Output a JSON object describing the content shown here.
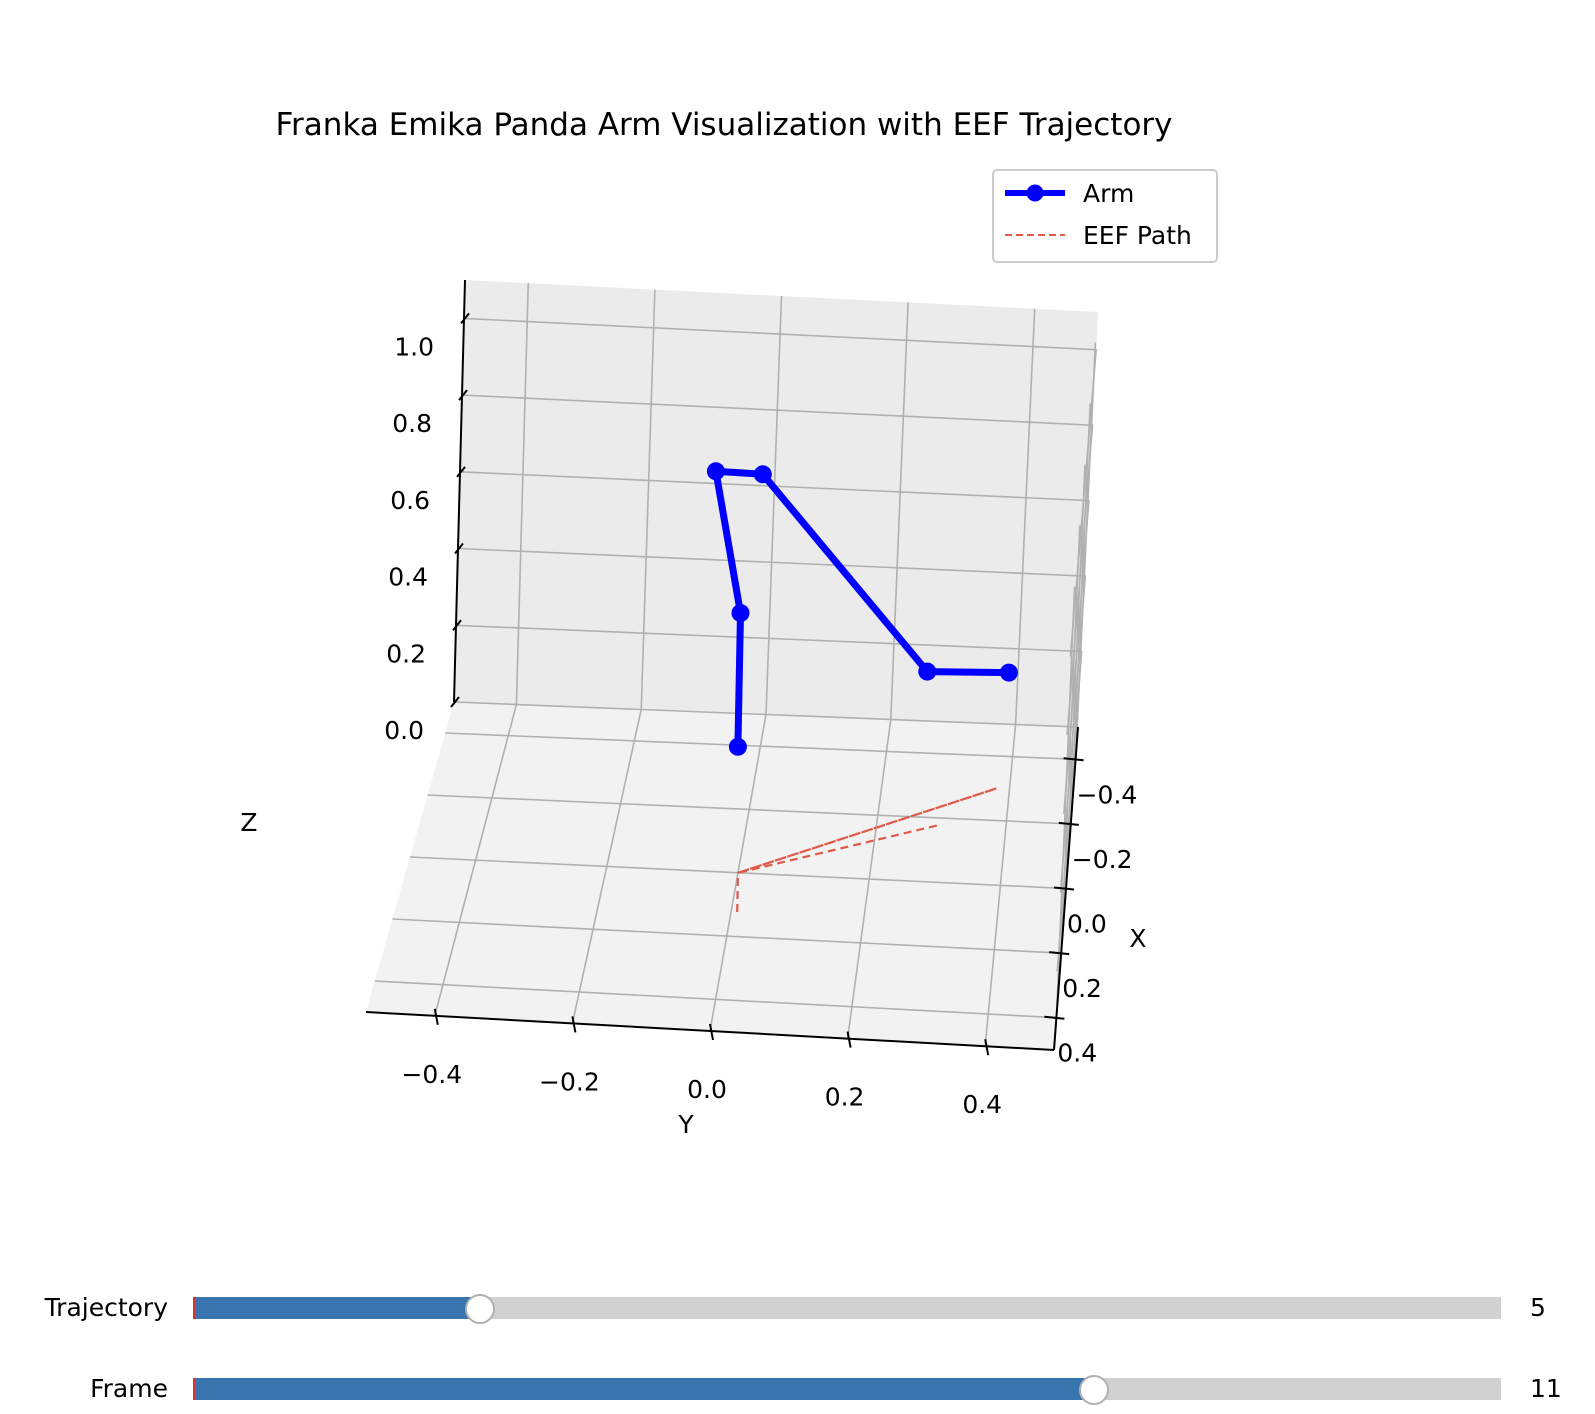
{
  "chart_data": {
    "type": "line",
    "projection": "3d",
    "title": "Franka Emika Panda Arm Visualization with EEF Trajectory",
    "xlabel": "X",
    "ylabel": "Y",
    "zlabel": "Z",
    "xlim": [
      -0.5,
      0.5
    ],
    "ylim": [
      -0.5,
      0.5
    ],
    "zlim": [
      0.0,
      1.1
    ],
    "xticks": [
      "−0.4",
      "−0.2",
      "0.0",
      "0.2",
      "0.4"
    ],
    "yticks": [
      "−0.4",
      "−0.2",
      "0.0",
      "0.2",
      "0.4"
    ],
    "zticks": [
      "0.0",
      "0.2",
      "0.4",
      "0.6",
      "0.8",
      "1.0"
    ],
    "grid": true,
    "legend": {
      "placement": "top-right"
    },
    "series": [
      {
        "name": "Arm",
        "style": "solid-line-with-markers",
        "color": "#0000ff",
        "points": [
          [
            0.05,
            0.0,
            0.36
          ],
          [
            0.05,
            0.0,
            0.7
          ],
          [
            -0.05,
            -0.05,
            0.98
          ],
          [
            -0.05,
            0.02,
            0.98
          ],
          [
            0.05,
            0.28,
            0.58
          ],
          [
            0.0,
            0.4,
            0.55
          ]
        ]
      },
      {
        "name": "EEF Path",
        "style": "dashed",
        "color": "#e05a4a",
        "points": [
          [
            0.0,
            0.0,
            -0.1
          ],
          [
            0.0,
            0.0,
            0.0
          ],
          [
            -0.3,
            0.38,
            0.0
          ],
          [
            0.0,
            0.0,
            0.0
          ],
          [
            -0.18,
            0.3,
            0.0
          ]
        ]
      }
    ]
  },
  "sliders": [
    {
      "label": "Trajectory",
      "value": "5",
      "fraction": 0.218
    },
    {
      "label": "Frame",
      "value": "11",
      "fraction": 0.688
    }
  ]
}
